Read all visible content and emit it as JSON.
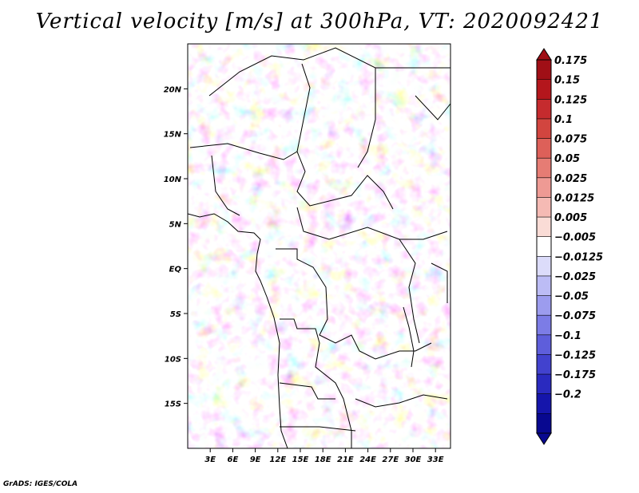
{
  "title": "Vertical velocity [m/s] at 300hPa, VT: 2020092421",
  "credit": "GrADS: IGES/COLA",
  "chart_data": {
    "type": "heatmap",
    "title": "Vertical velocity [m/s] at 300hPa, VT: 2020092421",
    "variable": "Vertical velocity",
    "units": "m/s",
    "level": "300hPa",
    "valid_time": "2020092421",
    "xlabel": "",
    "ylabel": "",
    "lon_range": [
      0,
      35
    ],
    "lat_range": [
      -20,
      25
    ],
    "x_ticks": [
      {
        "value": 3,
        "label": "3E"
      },
      {
        "value": 6,
        "label": "6E"
      },
      {
        "value": 9,
        "label": "9E"
      },
      {
        "value": 12,
        "label": "12E"
      },
      {
        "value": 15,
        "label": "15E"
      },
      {
        "value": 18,
        "label": "18E"
      },
      {
        "value": 21,
        "label": "21E"
      },
      {
        "value": 24,
        "label": "24E"
      },
      {
        "value": 27,
        "label": "27E"
      },
      {
        "value": 30,
        "label": "30E"
      },
      {
        "value": 33,
        "label": "33E"
      }
    ],
    "y_ticks": [
      {
        "value": 20,
        "label": "20N"
      },
      {
        "value": 15,
        "label": "15N"
      },
      {
        "value": 10,
        "label": "10N"
      },
      {
        "value": 5,
        "label": "5N"
      },
      {
        "value": 0,
        "label": "EQ"
      },
      {
        "value": -5,
        "label": "5S"
      },
      {
        "value": -10,
        "label": "10S"
      },
      {
        "value": -15,
        "label": "15S"
      }
    ],
    "colorbar": {
      "labels": [
        "0.175",
        "0.15",
        "0.125",
        "0.1",
        "0.075",
        "0.05",
        "0.025",
        "0.0125",
        "0.005",
        "−0.005",
        "−0.0125",
        "−0.025",
        "−0.05",
        "−0.075",
        "−0.1",
        "−0.125",
        "−0.175",
        "−0.2"
      ],
      "colors": [
        "#a00f16",
        "#b4161c",
        "#c52b2e",
        "#d2453f",
        "#dd6059",
        "#e67c74",
        "#ee9a94",
        "#f5bab4",
        "#fadcd6",
        "#ffffff",
        "#dcdcfa",
        "#bcbcf5",
        "#9c9cee",
        "#7c7ce6",
        "#5e5edb",
        "#4242ce",
        "#2a2abf",
        "#1515ab",
        "#080890"
      ]
    }
  }
}
